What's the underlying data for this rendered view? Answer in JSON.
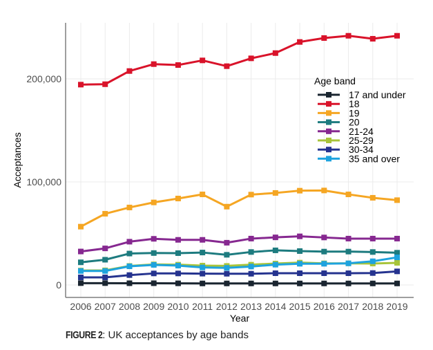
{
  "chart_data": {
    "type": "line",
    "title": "",
    "xlabel": "Year",
    "ylabel": "Acceptances",
    "x": [
      2006,
      2007,
      2008,
      2009,
      2010,
      2011,
      2012,
      2013,
      2014,
      2015,
      2016,
      2017,
      2018,
      2019
    ],
    "x_tick_labels": [
      "2006",
      "2007",
      "2008",
      "2009",
      "2010",
      "2011",
      "2012",
      "2013",
      "2014",
      "2015",
      "2016",
      "2017",
      "2018",
      "2019"
    ],
    "ylim": [
      -8000,
      254000
    ],
    "y_ticks": [
      0,
      100000,
      200000
    ],
    "y_tick_labels": [
      "0",
      "100,000",
      "200,000"
    ],
    "grid": true,
    "legend": {
      "title": "Age band",
      "placement": "right-inside"
    },
    "series": [
      {
        "name": "17 and under",
        "color": "#1a2530",
        "values": [
          1800,
          1800,
          1700,
          1700,
          1600,
          1500,
          1500,
          1500,
          1500,
          1500,
          1500,
          1500,
          1500,
          1500
        ]
      },
      {
        "name": "18",
        "color": "#d9132a",
        "values": [
          194400,
          194800,
          207600,
          214300,
          213400,
          217900,
          212300,
          219900,
          225000,
          235800,
          239600,
          241800,
          238900,
          241800
        ]
      },
      {
        "name": "19",
        "color": "#f5a623",
        "values": [
          56600,
          69100,
          75200,
          80100,
          83900,
          87900,
          76000,
          87700,
          89300,
          91500,
          91700,
          87900,
          84600,
          82300
        ]
      },
      {
        "name": "20",
        "color": "#1d7b7f",
        "values": [
          22000,
          24500,
          30500,
          31000,
          30900,
          31500,
          29300,
          32000,
          33600,
          32900,
          32400,
          32400,
          32000,
          31300
        ]
      },
      {
        "name": "21-24",
        "color": "#862890",
        "values": [
          32500,
          35500,
          42000,
          44800,
          43800,
          43800,
          41000,
          45000,
          46200,
          47200,
          46100,
          45000,
          45000,
          45000
        ]
      },
      {
        "name": "25-29",
        "color": "#a8c43a",
        "values": [
          14000,
          14200,
          18500,
          20000,
          19700,
          18800,
          18500,
          19700,
          20800,
          21700,
          21000,
          21000,
          20800,
          21500
        ]
      },
      {
        "name": "30-34",
        "color": "#25338f",
        "values": [
          7400,
          7400,
          9600,
          11200,
          11200,
          11000,
          10900,
          10900,
          11400,
          11400,
          11400,
          11400,
          11600,
          13200
        ]
      },
      {
        "name": "35 and over",
        "color": "#1ea3de",
        "values": [
          13600,
          13600,
          18100,
          19500,
          18800,
          17000,
          16600,
          17900,
          19700,
          20600,
          20600,
          21000,
          23000,
          26800
        ]
      }
    ]
  },
  "caption": {
    "label": "FIGURE 2",
    "text": ": UK acceptances by age bands"
  }
}
